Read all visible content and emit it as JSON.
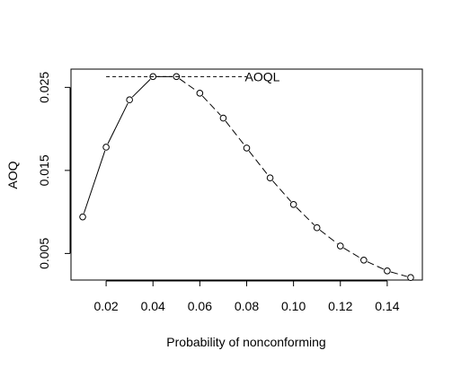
{
  "chart_data": {
    "type": "line",
    "xlabel": "Probability of nonconforming",
    "ylabel": "AOQ",
    "xlim": [
      0.005,
      0.155
    ],
    "ylim": [
      0.0018,
      0.0272
    ],
    "x_ticks": [
      {
        "value": 0.02,
        "label": "0.02"
      },
      {
        "value": 0.04,
        "label": "0.04"
      },
      {
        "value": 0.06,
        "label": "0.06"
      },
      {
        "value": 0.08,
        "label": "0.08"
      },
      {
        "value": 0.1,
        "label": "0.10"
      },
      {
        "value": 0.12,
        "label": "0.12"
      },
      {
        "value": 0.14,
        "label": "0.14"
      }
    ],
    "y_ticks": [
      {
        "value": 0.005,
        "label": "0.005"
      },
      {
        "value": 0.015,
        "label": "0.015"
      },
      {
        "value": 0.025,
        "label": "0.025"
      }
    ],
    "series": [
      {
        "x": [
          0.01,
          0.02,
          0.03,
          0.04,
          0.05,
          0.06,
          0.07,
          0.08,
          0.09,
          0.1,
          0.11,
          0.12,
          0.13,
          0.14,
          0.15
        ],
        "y": [
          0.0094,
          0.0178,
          0.0235,
          0.0263,
          0.0263,
          0.0243,
          0.0213,
          0.0177,
          0.0141,
          0.0109,
          0.0081,
          0.0059,
          0.0042,
          0.0029,
          0.0021
        ],
        "marker": "open-circle",
        "line": "solid-then-dashed"
      }
    ],
    "reference_line": {
      "label": "AOQL",
      "y": 0.0263,
      "x_from": 0.02,
      "x_to": 0.08,
      "style": "dashed"
    },
    "grid": false,
    "legend": "none"
  }
}
